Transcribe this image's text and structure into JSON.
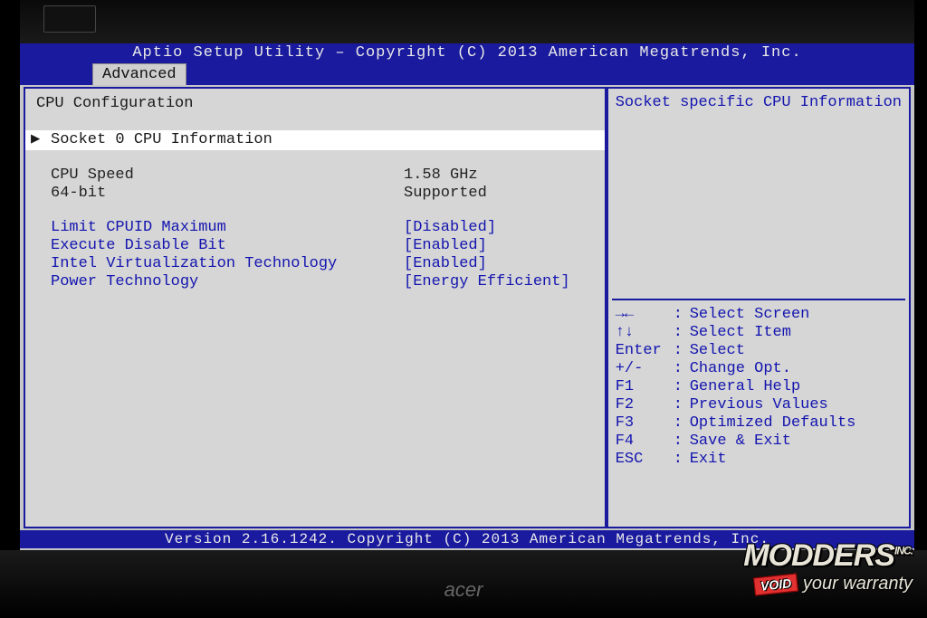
{
  "header": {
    "title": "Aptio Setup Utility – Copyright (C) 2013 American Megatrends, Inc."
  },
  "tabs": {
    "active": "Advanced"
  },
  "left": {
    "section_title": "CPU Configuration",
    "selected_item": "Socket 0 CPU Information",
    "info": [
      {
        "label": "CPU Speed",
        "value": "1.58 GHz"
      },
      {
        "label": "64-bit",
        "value": "Supported"
      }
    ],
    "options": [
      {
        "label": "Limit CPUID Maximum",
        "value": "[Disabled]"
      },
      {
        "label": "Execute Disable Bit",
        "value": "[Enabled]"
      },
      {
        "label": "Intel Virtualization Technology",
        "value": "[Enabled]"
      },
      {
        "label": "Power Technology",
        "value": "[Energy Efficient]"
      }
    ]
  },
  "right": {
    "description": "Socket specific CPU Information",
    "help": [
      {
        "key": "→←",
        "desc": "Select Screen"
      },
      {
        "key": "↑↓",
        "desc": "Select Item"
      },
      {
        "key": "Enter",
        "colon": ":",
        "desc": "Select"
      },
      {
        "key": "+/-",
        "desc": "Change Opt."
      },
      {
        "key": "F1",
        "desc": "General Help"
      },
      {
        "key": "F2",
        "desc": "Previous Values"
      },
      {
        "key": "F3",
        "desc": "Optimized Defaults"
      },
      {
        "key": "F4",
        "desc": "Save & Exit"
      },
      {
        "key": "ESC",
        "desc": "Exit"
      }
    ]
  },
  "footer": {
    "text": "Version 2.16.1242. Copyright (C) 2013 American Megatrends, Inc."
  },
  "monitor": {
    "brand": "acer"
  },
  "watermark": {
    "line1_a": "MODDERS",
    "line1_b": "INC.",
    "void": "VOID",
    "line2": "your warranty"
  },
  "colors": {
    "bios_blue": "#1a1a9e",
    "panel_bg": "#d5d6d5",
    "option_text": "#1414b0",
    "info_text": "#1a1a1a",
    "selected_bg": "#ffffff"
  }
}
